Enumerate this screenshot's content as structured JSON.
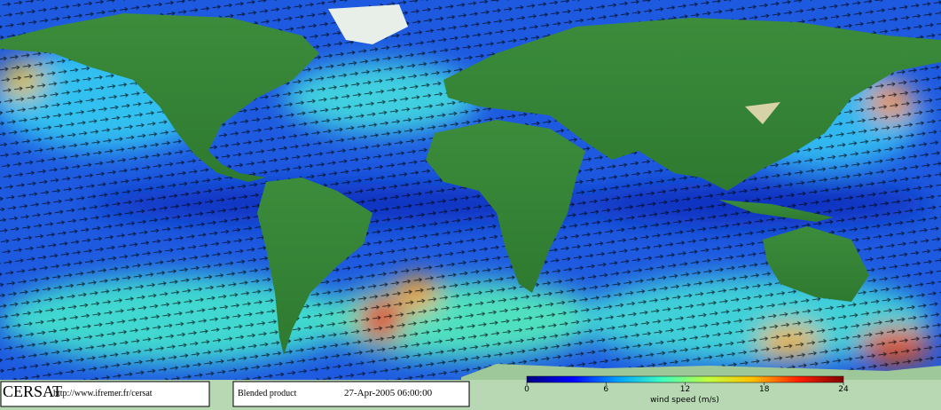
{
  "footer": {
    "logo": "CERSAT",
    "url": "http://www.ifremer.fr/cersat",
    "product": "Blended product",
    "timestamp": "27-Apr-2005 06:00:00"
  },
  "colorbar": {
    "label": "wind speed (m/s)",
    "lim": [
      0,
      24
    ],
    "ticks": [
      0,
      6,
      12,
      18,
      24
    ],
    "colors": [
      "#000080",
      "#0000ff",
      "#00a0ff",
      "#40ffc0",
      "#c0ff40",
      "#ffc000",
      "#ff2000",
      "#800000"
    ]
  }
}
